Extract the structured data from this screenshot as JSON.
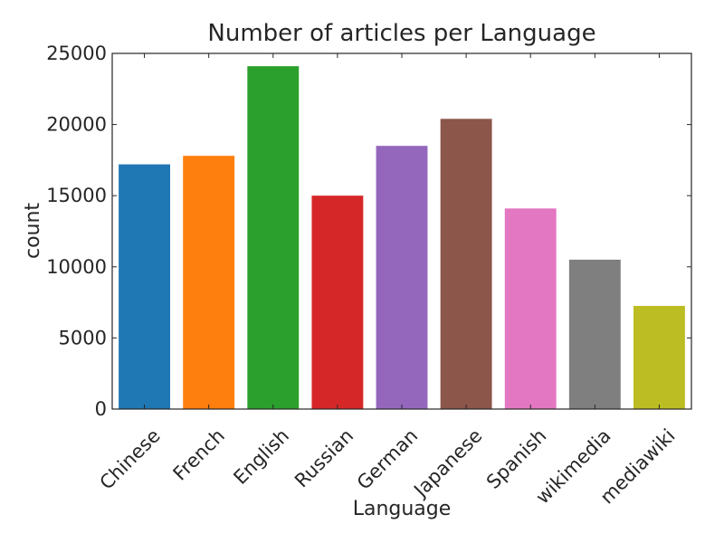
{
  "chart_data": {
    "type": "bar",
    "title": "Number of articles per Language",
    "xlabel": "Language",
    "ylabel": "count",
    "categories": [
      "Chinese",
      "French",
      "English",
      "Russian",
      "German",
      "Japanese",
      "Spanish",
      "wikimedia",
      "mediawiki"
    ],
    "values": [
      17200,
      17800,
      24100,
      15000,
      18500,
      20400,
      14100,
      10500,
      7250
    ],
    "colors": [
      "#1f77b4",
      "#ff7f0e",
      "#2ca02c",
      "#d62728",
      "#9467bd",
      "#8c564b",
      "#e377c2",
      "#7f7f7f",
      "#bcbd22"
    ],
    "ylim": [
      0,
      25000
    ],
    "yticks": [
      0,
      5000,
      10000,
      15000,
      20000,
      25000
    ],
    "yticklabels": [
      "0",
      "5000",
      "10000",
      "15000",
      "20000",
      "25000"
    ],
    "grid": false,
    "legend": "none"
  }
}
